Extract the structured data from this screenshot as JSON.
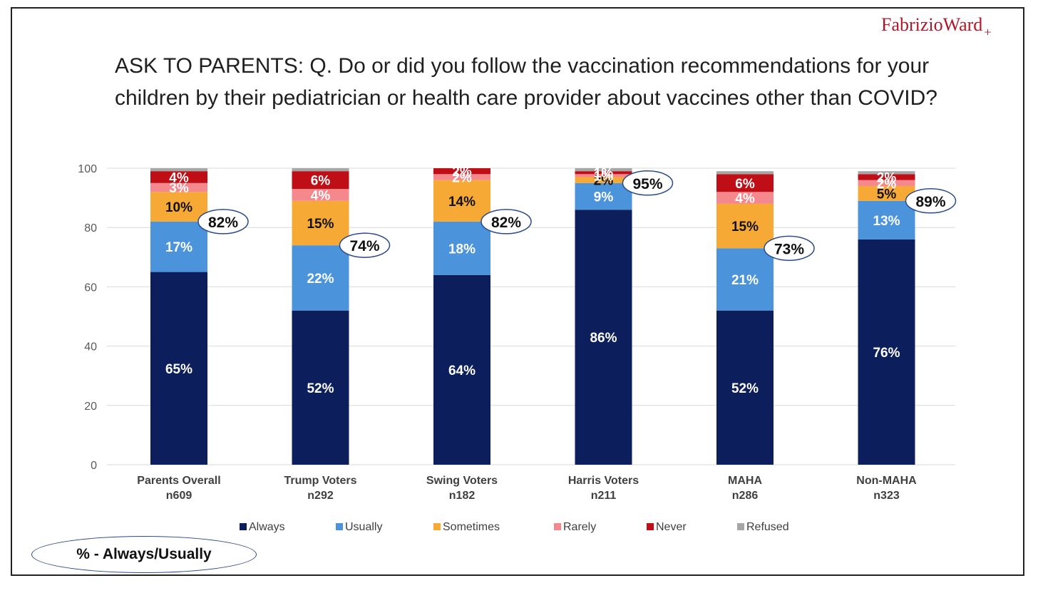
{
  "logo": {
    "text": "FabrizioWard",
    "plus": "+"
  },
  "title": "ASK TO PARENTS: Q. Do or did you follow the vaccination recommendations for your children by their pediatrician or health care provider about vaccines other than COVID?",
  "oval_note": "% - Always/Usually",
  "chart_data": {
    "type": "bar",
    "stacked": true,
    "categories": [
      {
        "name": "Parents Overall",
        "n": "n609"
      },
      {
        "name": "Trump Voters",
        "n": "n292"
      },
      {
        "name": "Swing Voters",
        "n": "n182"
      },
      {
        "name": "Harris Voters",
        "n": "n211"
      },
      {
        "name": "MAHA",
        "n": "n286"
      },
      {
        "name": "Non-MAHA",
        "n": "n323"
      }
    ],
    "series": [
      {
        "name": "Always",
        "color": "#0c1f5c",
        "label_color": "#ffffff",
        "values": [
          65,
          52,
          64,
          86,
          52,
          76
        ],
        "labels": [
          "65%",
          "52%",
          "64%",
          "86%",
          "52%",
          "76%"
        ]
      },
      {
        "name": "Usually",
        "color": "#4b94dc",
        "label_color": "#ffffff",
        "values": [
          17,
          22,
          18,
          9,
          21,
          13
        ],
        "labels": [
          "17%",
          "22%",
          "18%",
          "9%",
          "21%",
          "13%"
        ]
      },
      {
        "name": "Sometimes",
        "color": "#f7a935",
        "label_color": "#111111",
        "values": [
          10,
          15,
          14,
          2,
          15,
          5
        ],
        "labels": [
          "10%",
          "15%",
          "14%",
          "2%",
          "15%",
          "5%"
        ]
      },
      {
        "name": "Rarely",
        "color": "#f4888c",
        "label_color": "#ffffff",
        "values": [
          3,
          4,
          2,
          1,
          4,
          2
        ],
        "labels": [
          "3%",
          "4%",
          "2%",
          "1%",
          "4%",
          "2%"
        ]
      },
      {
        "name": "Never",
        "color": "#c00e16",
        "label_color": "#ffffff",
        "values": [
          4,
          6,
          2,
          1,
          6,
          2
        ],
        "labels": [
          "4%",
          "6%",
          "2%",
          "1%",
          "6%",
          "2%"
        ]
      },
      {
        "name": "Refused",
        "color": "#a6a6a6",
        "label_color": "#ffffff",
        "values": [
          1,
          1,
          0,
          1,
          1,
          1
        ],
        "labels": [
          "",
          "",
          "",
          "",
          "",
          ""
        ]
      }
    ],
    "totals_always_usually": [
      "82%",
      "74%",
      "82%",
      "95%",
      "73%",
      "89%"
    ],
    "ylim": [
      0,
      100
    ],
    "yticks": [
      0,
      20,
      40,
      60,
      80,
      100
    ],
    "grid": true,
    "legend_position": "bottom"
  }
}
